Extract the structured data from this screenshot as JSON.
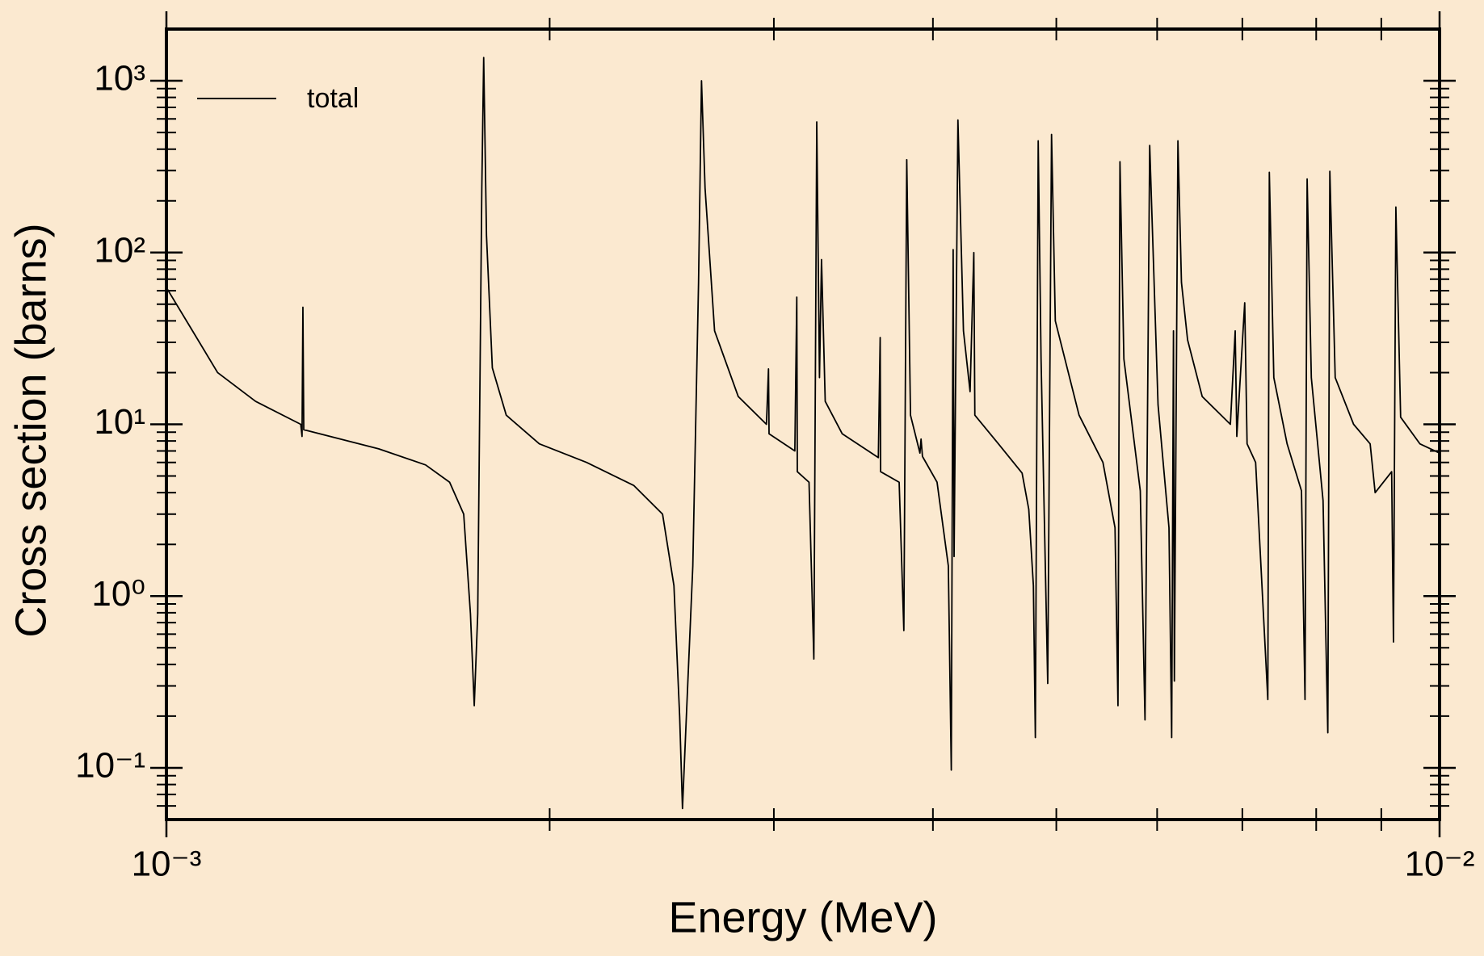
{
  "chart_data": {
    "type": "line",
    "xlabel": "Energy (MeV)",
    "ylabel": "Cross section (barns)",
    "xscale": "log",
    "yscale": "log",
    "minor_ticks": true,
    "legend": "upper left",
    "background": "#fbe9d0",
    "xlim": [
      0.001,
      0.01
    ],
    "xticks": [
      {
        "value": 0.001,
        "label": "10⁻³"
      },
      {
        "value": 0.01,
        "label": "10⁻²"
      }
    ],
    "ylim": [
      0.05,
      2000
    ],
    "yticks": [
      {
        "value": 0.1,
        "label": "10⁻¹"
      },
      {
        "value": 1,
        "label": "10⁰"
      },
      {
        "value": 10,
        "label": "10¹"
      },
      {
        "value": 100,
        "label": "10²"
      },
      {
        "value": 1000,
        "label": "10³"
      }
    ],
    "x": [
      0.001,
      0.001042,
      0.001097,
      0.001175,
      0.001275,
      0.001278,
      0.00128,
      0.001282,
      0.001468,
      0.001598,
      0.001669,
      0.001712,
      0.001733,
      0.001745,
      0.001756,
      0.001769,
      0.001775,
      0.001784,
      0.001803,
      0.001849,
      0.001963,
      0.002138,
      0.002329,
      0.002453,
      0.002504,
      0.00253,
      0.002543,
      0.002561,
      0.002591,
      0.002618,
      0.002632,
      0.002649,
      0.002695,
      0.002813,
      0.00296,
      0.002971,
      0.002974,
      0.003116,
      0.003127,
      0.00313,
      0.003197,
      0.003225,
      0.003242,
      0.003258,
      0.00327,
      0.003292,
      0.003395,
      0.003624,
      0.003636,
      0.003639,
      0.003763,
      0.003795,
      0.003815,
      0.003841,
      0.003907,
      0.003915,
      0.003925,
      0.00403,
      0.004113,
      0.004135,
      0.004149,
      0.004156,
      0.004185,
      0.004227,
      0.004278,
      0.004307,
      0.004315,
      0.004503,
      0.0047,
      0.004757,
      0.004797,
      0.004814,
      0.004839,
      0.004864,
      0.004923,
      0.004957,
      0.004991,
      0.00521,
      0.00544,
      0.00556,
      0.00559,
      0.00561,
      0.00565,
      0.00582,
      0.00587,
      0.00592,
      0.00601,
      0.00613,
      0.00616,
      0.00618,
      0.00619,
      0.00623,
      0.00627,
      0.00634,
      0.00651,
      0.00685,
      0.00691,
      0.00693,
      0.00703,
      0.00706,
      0.00717,
      0.00733,
      0.00735,
      0.00741,
      0.00759,
      0.00779,
      0.00784,
      0.00787,
      0.00793,
      0.0081,
      0.00817,
      0.0082,
      0.00828,
      0.00856,
      0.00882,
      0.0089,
      0.00917,
      0.0092,
      0.00924,
      0.00932,
      0.00965,
      0.01
    ],
    "series": [
      {
        "name": "total",
        "color": "#000000",
        "values": [
          62.5,
          37.7,
          20,
          13.6,
          10,
          8.5,
          48,
          9.3,
          7.2,
          5.8,
          4.6,
          3,
          0.79,
          0.23,
          0.79,
          237,
          1365,
          126,
          21.3,
          11.3,
          7.7,
          6,
          4.4,
          3,
          1.15,
          0.2,
          0.058,
          0.2,
          1.5,
          67,
          1000,
          237,
          35,
          14.5,
          10,
          21,
          8.8,
          7,
          55,
          5.3,
          4.6,
          0.43,
          576,
          18.7,
          91,
          13.6,
          8.8,
          6.4,
          32,
          5.3,
          4.6,
          0.63,
          347,
          11.3,
          6.8,
          8.2,
          6.5,
          4.6,
          1.5,
          0.097,
          104,
          1.7,
          591,
          35,
          15.5,
          100,
          11.3,
          7.7,
          5.2,
          3.2,
          1.15,
          0.15,
          447,
          24,
          0.31,
          487,
          40,
          11.3,
          6,
          2.5,
          0.23,
          338,
          24,
          4.1,
          0.19,
          420,
          13,
          2.5,
          0.15,
          35,
          0.32,
          447,
          67,
          31,
          14.5,
          10,
          35,
          8.5,
          51,
          7.7,
          6,
          0.25,
          293,
          18.7,
          7.7,
          4.1,
          0.25,
          268,
          18.7,
          3.6,
          0.16,
          297,
          18.7,
          10,
          7.7,
          4,
          5.3,
          0.54,
          184,
          11,
          7.7,
          6.8
        ]
      }
    ]
  }
}
